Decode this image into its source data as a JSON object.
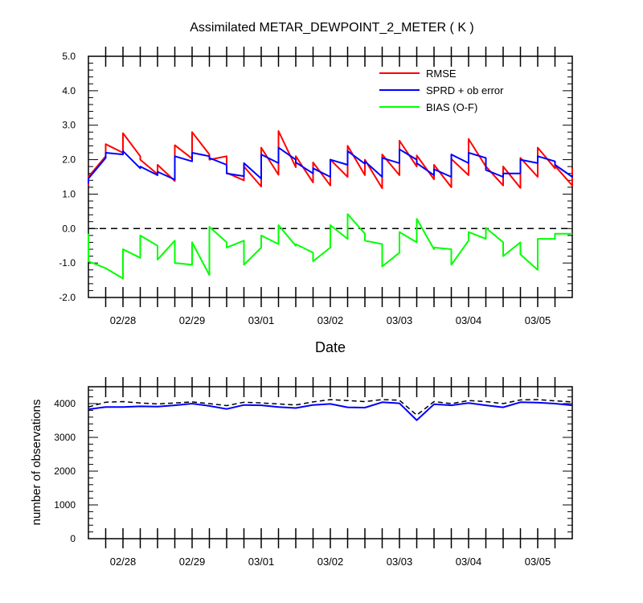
{
  "chart_data": [
    {
      "type": "line",
      "title": "Assimilated METAR_DEWPOINT_2_METER ( K )",
      "xlabel": "Date",
      "ylabel": "",
      "xlim": [
        0,
        56
      ],
      "ylim": [
        -2.0,
        5.0
      ],
      "yticks": [
        5.0,
        4.0,
        3.0,
        2.0,
        1.0,
        0.0,
        -1.0,
        -2.0
      ],
      "ytick_labels": [
        "5.0",
        "4.0",
        "3.0",
        "2.0",
        "1.0",
        "0.0",
        "-1.0",
        "-2.0"
      ],
      "xticks": [
        4,
        12,
        20,
        28,
        36,
        44,
        52
      ],
      "xtick_labels": [
        "02/28",
        "02/29",
        "03/01",
        "03/02",
        "03/03",
        "03/04",
        "03/05"
      ],
      "reference_line": {
        "y": 0.0,
        "style": "dashed",
        "color": "#000000"
      },
      "legend_position": "top-right",
      "series": [
        {
          "name": "RMSE",
          "color": "#ff0000",
          "sawtooth": true,
          "x": [
            0,
            2,
            4,
            6,
            8,
            10,
            12,
            14,
            16,
            18,
            20,
            22,
            24,
            26,
            28,
            30,
            32,
            34,
            36,
            38,
            40,
            42,
            44,
            46,
            48,
            50,
            52,
            54,
            56
          ],
          "prior": [
            1.25,
            2.1,
            2.2,
            2.1,
            1.58,
            1.38,
            2.03,
            2.15,
            2.1,
            1.4,
            1.22,
            1.56,
            1.78,
            1.34,
            1.25,
            1.5,
            1.55,
            1.17,
            1.55,
            1.8,
            1.43,
            1.2,
            1.55,
            1.8,
            1.25,
            1.18,
            1.5,
            1.75,
            1.25
          ],
          "posterior": [
            1.5,
            2.45,
            2.77,
            2.0,
            1.85,
            2.42,
            2.8,
            2.0,
            1.62,
            1.8,
            2.35,
            2.83,
            2.1,
            1.92,
            2.0,
            2.4,
            2.0,
            2.15,
            2.55,
            2.12,
            1.85,
            2.02,
            2.6,
            1.8,
            1.8,
            2.05,
            2.35,
            1.82,
            1.75
          ]
        },
        {
          "name": "SPRD + ob error",
          "color": "#0000ff",
          "sawtooth": true,
          "x": [
            0,
            2,
            4,
            6,
            8,
            10,
            12,
            14,
            16,
            18,
            20,
            22,
            24,
            26,
            28,
            30,
            32,
            34,
            36,
            38,
            40,
            42,
            44,
            46,
            48,
            50,
            52,
            54,
            56
          ],
          "prior": [
            1.3,
            2.05,
            2.15,
            1.75,
            1.55,
            1.42,
            1.95,
            2.1,
            1.85,
            1.52,
            1.45,
            1.9,
            2.0,
            1.6,
            1.5,
            1.85,
            1.88,
            1.5,
            1.9,
            2.0,
            1.55,
            1.5,
            1.9,
            2.05,
            1.5,
            1.6,
            1.9,
            1.95,
            1.5
          ],
          "posterior": [
            1.45,
            2.2,
            2.25,
            1.8,
            1.65,
            2.1,
            2.2,
            2.05,
            1.6,
            1.9,
            2.15,
            2.35,
            1.92,
            1.75,
            2.0,
            2.25,
            1.95,
            2.05,
            2.3,
            1.9,
            1.72,
            2.15,
            2.2,
            1.7,
            1.6,
            2.0,
            2.1,
            1.85,
            1.55
          ]
        },
        {
          "name": "BIAS (O-F)",
          "color": "#00ff00",
          "sawtooth": true,
          "x": [
            0,
            2,
            4,
            6,
            8,
            10,
            12,
            14,
            16,
            18,
            20,
            22,
            24,
            26,
            28,
            30,
            32,
            34,
            36,
            38,
            40,
            42,
            44,
            46,
            48,
            50,
            52,
            54,
            56
          ],
          "prior": [
            -0.15,
            -1.15,
            -1.45,
            -0.85,
            -0.5,
            -0.35,
            -1.05,
            -1.35,
            -0.4,
            -0.35,
            -0.55,
            -0.45,
            -0.5,
            -0.7,
            -0.55,
            -0.3,
            -0.15,
            -0.45,
            -0.7,
            -0.4,
            -0.6,
            -0.6,
            -0.35,
            -0.3,
            -0.4,
            -0.4,
            -1.2,
            -0.3,
            -0.15
          ],
          "posterior": [
            -0.95,
            -1.15,
            -0.6,
            -0.2,
            -0.9,
            -1.0,
            -0.4,
            0.05,
            -0.55,
            -1.05,
            -0.2,
            0.1,
            -0.45,
            -0.95,
            0.1,
            0.42,
            -0.35,
            -1.1,
            -0.1,
            0.28,
            -0.55,
            -1.05,
            -0.1,
            0.02,
            -0.8,
            -0.75,
            -0.3,
            -0.15,
            -0.15
          ]
        }
      ]
    },
    {
      "type": "line",
      "title": "",
      "xlabel": "",
      "ylabel": "number of observations",
      "xlim": [
        0,
        56
      ],
      "ylim": [
        0,
        4500
      ],
      "yticks": [
        0,
        1000,
        2000,
        3000,
        4000
      ],
      "ytick_labels": [
        "0",
        "1000",
        "2000",
        "3000",
        "4000"
      ],
      "xticks": [
        4,
        12,
        20,
        28,
        36,
        44,
        52
      ],
      "xtick_labels": [
        "02/28",
        "02/29",
        "03/01",
        "03/02",
        "03/03",
        "03/04",
        "03/05"
      ],
      "series": [
        {
          "color": "#0000ff",
          "style": "solid",
          "x": [
            0,
            2,
            4,
            6,
            8,
            10,
            12,
            14,
            16,
            18,
            20,
            22,
            24,
            26,
            28,
            30,
            32,
            34,
            36,
            38,
            40,
            42,
            44,
            46,
            48,
            50,
            52,
            54,
            56
          ],
          "y": [
            3830,
            3900,
            3900,
            3920,
            3910,
            3950,
            4000,
            3930,
            3840,
            3960,
            3950,
            3900,
            3870,
            3960,
            3990,
            3890,
            3880,
            4040,
            4010,
            3510,
            3980,
            3950,
            4020,
            3950,
            3890,
            4040,
            4030,
            4000,
            3950
          ]
        },
        {
          "color": "#000000",
          "style": "dashed",
          "x": [
            0,
            2,
            4,
            6,
            8,
            10,
            12,
            14,
            16,
            18,
            20,
            22,
            24,
            26,
            28,
            30,
            32,
            34,
            36,
            38,
            40,
            42,
            44,
            46,
            48,
            50,
            52,
            54,
            56
          ],
          "y": [
            3900,
            4040,
            4060,
            4020,
            3990,
            4020,
            4050,
            4000,
            3940,
            4040,
            4020,
            3990,
            3960,
            4050,
            4120,
            4090,
            4060,
            4120,
            4100,
            3660,
            4060,
            4000,
            4090,
            4060,
            4000,
            4110,
            4120,
            4080,
            4050
          ]
        }
      ]
    }
  ]
}
